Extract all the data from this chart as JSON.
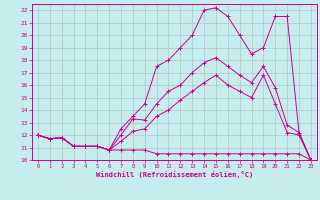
{
  "xlabel": "Windchill (Refroidissement éolien,°C)",
  "background_color": "#c6ecee",
  "grid_color": "#aac8cc",
  "line_color": "#cc0088",
  "xlim": [
    -0.5,
    23.5
  ],
  "ylim": [
    10,
    22.5
  ],
  "yticks": [
    10,
    11,
    12,
    13,
    14,
    15,
    16,
    17,
    18,
    19,
    20,
    21,
    22
  ],
  "xticks": [
    0,
    1,
    2,
    3,
    4,
    5,
    6,
    7,
    8,
    9,
    10,
    11,
    12,
    13,
    14,
    15,
    16,
    17,
    18,
    19,
    20,
    21,
    22,
    23
  ],
  "line1_x": [
    0,
    1,
    2,
    3,
    4,
    5,
    6,
    7,
    8,
    9,
    10,
    11,
    12,
    13,
    14,
    15,
    16,
    17,
    18,
    19,
    20,
    21,
    22,
    23
  ],
  "line1_y": [
    12.0,
    11.7,
    11.8,
    11.1,
    11.1,
    11.1,
    10.8,
    10.8,
    10.8,
    10.8,
    10.5,
    10.5,
    10.5,
    10.5,
    10.5,
    10.5,
    10.5,
    10.5,
    10.5,
    10.5,
    10.5,
    10.5,
    10.5,
    10.0
  ],
  "line2_x": [
    0,
    1,
    2,
    3,
    4,
    5,
    6,
    7,
    8,
    9,
    10,
    11,
    12,
    13,
    14,
    15,
    16,
    17,
    18,
    19,
    20,
    21,
    22,
    23
  ],
  "line2_y": [
    12.0,
    11.7,
    11.8,
    11.1,
    11.1,
    11.1,
    10.8,
    11.5,
    12.3,
    12.5,
    13.5,
    14.0,
    14.8,
    15.5,
    16.2,
    16.8,
    16.0,
    15.5,
    15.0,
    16.8,
    14.5,
    12.2,
    12.0,
    10.0
  ],
  "line3_x": [
    0,
    1,
    2,
    3,
    4,
    5,
    6,
    7,
    8,
    9,
    10,
    11,
    12,
    13,
    14,
    15,
    16,
    17,
    18,
    19,
    20,
    21,
    22,
    23
  ],
  "line3_y": [
    12.0,
    11.7,
    11.8,
    11.1,
    11.1,
    11.1,
    10.8,
    12.0,
    13.3,
    13.2,
    14.5,
    15.5,
    16.0,
    17.0,
    17.8,
    18.2,
    17.5,
    16.8,
    16.2,
    17.5,
    15.8,
    12.8,
    12.2,
    10.0
  ],
  "line4_x": [
    0,
    1,
    2,
    3,
    4,
    5,
    6,
    7,
    8,
    9,
    10,
    11,
    12,
    13,
    14,
    15,
    16,
    17,
    18,
    19,
    20,
    21,
    22,
    23
  ],
  "line4_y": [
    12.0,
    11.7,
    11.8,
    11.1,
    11.1,
    11.1,
    10.8,
    12.5,
    13.5,
    14.5,
    17.5,
    18.0,
    19.0,
    20.0,
    22.0,
    22.2,
    21.5,
    20.0,
    18.5,
    19.0,
    21.5,
    21.5,
    12.2,
    10.0
  ]
}
